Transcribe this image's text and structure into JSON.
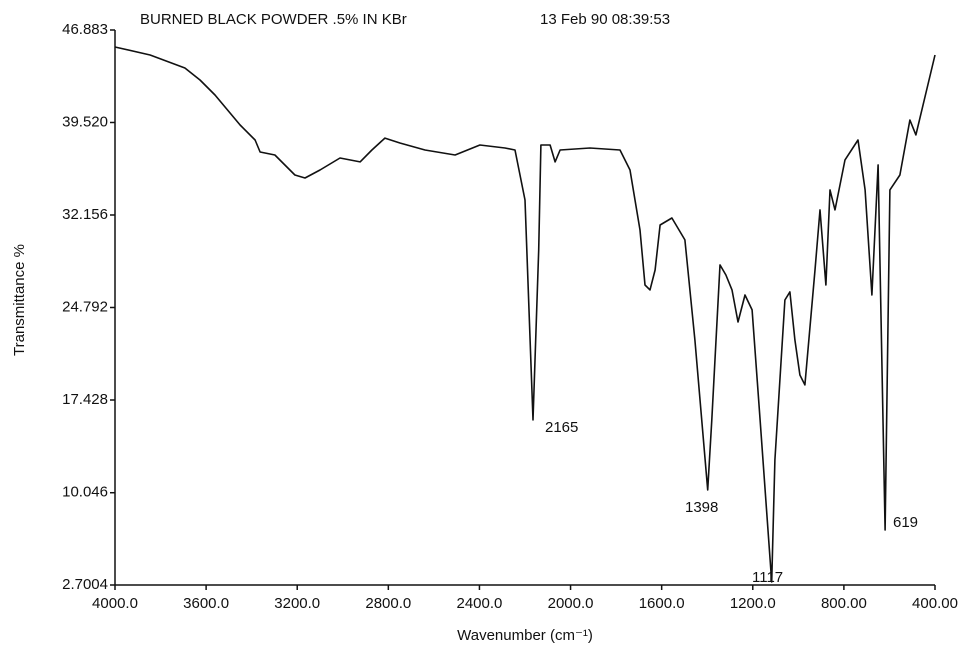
{
  "chart_data": {
    "type": "line",
    "title": "BURNED BLACK POWDER .5% IN KBr",
    "subtitle": "13 Feb 90 08:39:53",
    "xlabel": "Wavenumber (cm⁻¹)",
    "ylabel": "Transmittance %",
    "color": "#111111",
    "grid": false,
    "xlim": [
      4000,
      400
    ],
    "ylim": [
      2.7004,
      46.883
    ],
    "xticks": [
      {
        "value": 4000,
        "label": "4000.0"
      },
      {
        "value": 3600,
        "label": "3600.0"
      },
      {
        "value": 3200,
        "label": "3200.0"
      },
      {
        "value": 2800,
        "label": "2800.0"
      },
      {
        "value": 2400,
        "label": "2400.0"
      },
      {
        "value": 2000,
        "label": "2000.0"
      },
      {
        "value": 1600,
        "label": "1600.0"
      },
      {
        "value": 1200,
        "label": "1200.0"
      },
      {
        "value": 800,
        "label": "800.00"
      },
      {
        "value": 400,
        "label": "400.00"
      }
    ],
    "yticks": [
      46.883,
      {
        "value": 39.52,
        "label": "39.520"
      },
      32.156,
      24.792,
      17.428,
      10.046,
      2.7004
    ],
    "x": [
      4000,
      3846,
      3693,
      3627,
      3561,
      3451,
      3385,
      3363,
      3298,
      3210,
      3166,
      3100,
      3012,
      2924,
      2872,
      2815,
      2749,
      2639,
      2507,
      2398,
      2288,
      2244,
      2200,
      2165,
      2140,
      2130,
      2090,
      2068,
      2046,
      1915,
      1783,
      1739,
      1695,
      1673,
      1651,
      1629,
      1607,
      1555,
      1498,
      1454,
      1398,
      1380,
      1344,
      1318,
      1291,
      1265,
      1234,
      1203,
      1168,
      1117,
      1103,
      1059,
      1037,
      1015,
      993,
      971,
      927,
      905,
      879,
      861,
      839,
      795,
      738,
      707,
      677,
      650,
      619,
      598,
      554,
      510,
      484,
      400
    ],
    "values": [
      45.53,
      44.89,
      43.86,
      42.9,
      41.71,
      39.32,
      38.13,
      37.17,
      36.93,
      35.34,
      35.1,
      35.74,
      36.69,
      36.38,
      37.33,
      38.28,
      37.89,
      37.33,
      36.93,
      37.73,
      37.49,
      37.33,
      33.35,
      15.84,
      29.37,
      37.73,
      37.73,
      36.38,
      37.33,
      37.49,
      37.33,
      35.74,
      30.96,
      26.58,
      26.19,
      27.78,
      31.36,
      31.92,
      30.17,
      22.21,
      10.27,
      15.84,
      28.18,
      27.38,
      26.19,
      23.64,
      25.79,
      24.6,
      15.84,
      2.94,
      12.65,
      25.39,
      26.03,
      22.21,
      19.42,
      18.63,
      27.78,
      32.56,
      26.58,
      34.15,
      32.56,
      36.54,
      38.13,
      34.15,
      25.79,
      36.14,
      7.08,
      34.15,
      35.34,
      39.72,
      38.53,
      44.89
    ],
    "annotations": [
      "2165",
      "1398",
      "1117",
      "619"
    ]
  }
}
